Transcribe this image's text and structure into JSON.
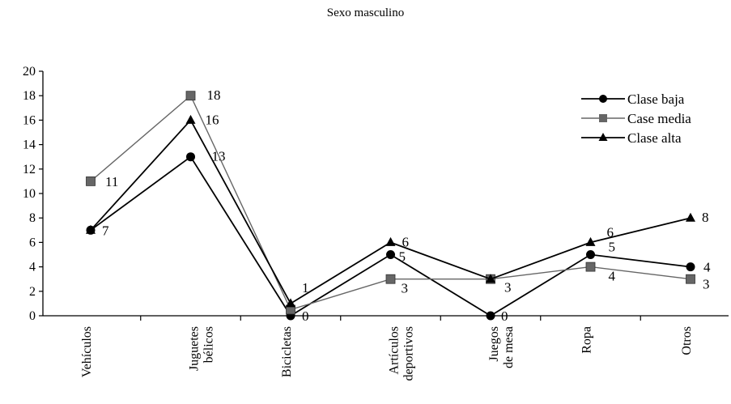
{
  "chart_data": {
    "type": "line",
    "title": "Sexo masculino",
    "xlabel": "",
    "ylabel": "",
    "ylim": [
      0,
      20
    ],
    "yticks": [
      "0",
      "2",
      "4",
      "6",
      "8",
      "10",
      "12",
      "14",
      "16",
      "18",
      "20"
    ],
    "categories": [
      "Vehículos",
      "Juguetes bélicos",
      "Bicicletas",
      "Artículos deportivos",
      "Juegos de mesa",
      "Ropa",
      "Otros"
    ],
    "category_lines": [
      [
        "Vehículos"
      ],
      [
        "Juguetes",
        "bélicos"
      ],
      [
        "Bicicletas"
      ],
      [
        "Artículos",
        "deportivos"
      ],
      [
        "Juegos",
        "de mesa"
      ],
      [
        "Ropa"
      ],
      [
        "Otros"
      ]
    ],
    "grid": false,
    "legend_position": "top-right",
    "series": [
      {
        "name": "Clase baja",
        "marker": "circle",
        "color": "#000000",
        "values": [
          7,
          13,
          0,
          5,
          0,
          5,
          4
        ],
        "labels": [
          "7",
          "13",
          "0",
          "5",
          "0",
          "5",
          "4"
        ]
      },
      {
        "name": "Case media",
        "marker": "square",
        "color": "#666666",
        "values": [
          11,
          18,
          0.5,
          3,
          3,
          4,
          3
        ],
        "labels": [
          "11",
          "18",
          "",
          "3",
          "3",
          "4",
          "3"
        ]
      },
      {
        "name": "Clase alta",
        "marker": "triangle",
        "color": "#000000",
        "values": [
          7,
          16,
          1,
          6,
          3,
          6,
          8
        ],
        "labels": [
          "",
          "16",
          "1",
          "6",
          "",
          "6",
          "8"
        ]
      }
    ]
  }
}
